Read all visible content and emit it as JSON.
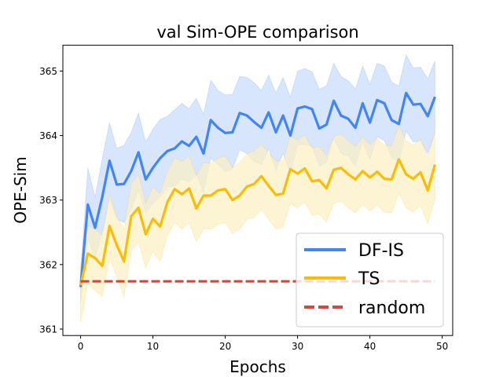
{
  "chart_data": {
    "type": "line",
    "title": "val Sim-OPE comparison",
    "xlabel": "Epochs",
    "ylabel": "OPE-Sim",
    "xlim": [
      -2.45,
      51.45
    ],
    "ylim": [
      360.9,
      365.4
    ],
    "xticks": [
      0,
      10,
      20,
      30,
      40,
      50
    ],
    "yticks": [
      361,
      362,
      363,
      364,
      365
    ],
    "grid": false,
    "legend": {
      "placement": "lower-right"
    },
    "x": [
      0,
      1,
      2,
      3,
      4,
      5,
      6,
      7,
      8,
      9,
      10,
      11,
      12,
      13,
      14,
      15,
      16,
      17,
      18,
      19,
      20,
      21,
      22,
      23,
      24,
      25,
      26,
      27,
      28,
      29,
      30,
      31,
      32,
      33,
      34,
      35,
      36,
      37,
      38,
      39,
      40,
      41,
      42,
      43,
      44,
      45,
      46,
      47,
      48,
      49
    ],
    "series": [
      {
        "name": "DF-IS",
        "color": "#4285f4",
        "band_color": "#c6dafc",
        "style": "solid",
        "values": [
          361.65,
          362.93,
          362.57,
          363.05,
          363.61,
          363.24,
          363.25,
          363.45,
          363.74,
          363.32,
          363.5,
          363.65,
          363.76,
          363.8,
          363.91,
          363.84,
          363.98,
          363.72,
          364.24,
          364.12,
          364.04,
          364.05,
          364.35,
          364.31,
          364.21,
          364.12,
          364.36,
          364.05,
          364.31,
          364.0,
          364.42,
          364.45,
          364.41,
          364.11,
          364.17,
          364.54,
          364.31,
          364.26,
          364.12,
          364.5,
          364.2,
          364.55,
          364.5,
          364.24,
          364.18,
          364.66,
          364.48,
          364.49,
          364.3,
          364.6
        ],
        "upper": [
          361.9,
          363.5,
          363.05,
          363.65,
          364.2,
          363.8,
          363.85,
          364.05,
          364.35,
          363.9,
          364.1,
          364.25,
          364.3,
          364.4,
          364.5,
          364.42,
          364.58,
          364.33,
          364.86,
          364.7,
          364.63,
          364.64,
          364.92,
          364.9,
          364.82,
          364.7,
          364.94,
          364.66,
          364.9,
          364.6,
          365.0,
          365.04,
          364.99,
          364.72,
          364.77,
          365.12,
          364.92,
          364.85,
          364.72,
          365.08,
          364.8,
          365.12,
          365.08,
          364.83,
          364.77,
          365.25,
          365.05,
          365.06,
          364.88,
          365.16
        ],
        "lower": [
          361.4,
          362.4,
          362.1,
          362.5,
          363.0,
          362.7,
          362.65,
          362.85,
          363.15,
          362.8,
          362.95,
          363.05,
          363.2,
          363.22,
          363.32,
          363.28,
          363.4,
          363.12,
          363.65,
          363.55,
          363.44,
          363.48,
          363.78,
          363.72,
          363.6,
          363.55,
          363.79,
          363.46,
          363.72,
          363.42,
          363.85,
          363.86,
          363.83,
          363.52,
          363.58,
          363.96,
          363.72,
          363.68,
          363.52,
          363.9,
          363.62,
          363.98,
          363.92,
          363.66,
          363.59,
          364.07,
          363.9,
          363.91,
          363.72,
          364.03
        ]
      },
      {
        "name": "TS",
        "color": "#fbbc04",
        "band_color": "#fcefc2",
        "style": "solid",
        "values": [
          361.68,
          362.17,
          362.1,
          361.98,
          362.6,
          362.3,
          362.05,
          362.75,
          362.88,
          362.47,
          362.71,
          362.59,
          362.97,
          363.17,
          363.09,
          363.18,
          362.87,
          363.07,
          363.07,
          363.15,
          363.17,
          363.0,
          363.07,
          363.21,
          363.25,
          363.37,
          363.22,
          363.08,
          363.1,
          363.48,
          363.41,
          363.49,
          363.29,
          363.31,
          363.18,
          363.47,
          363.5,
          363.4,
          363.32,
          363.45,
          363.35,
          363.44,
          363.33,
          363.32,
          363.63,
          363.4,
          363.33,
          363.43,
          363.15,
          363.55
        ],
        "upper": [
          362.0,
          362.6,
          362.55,
          362.45,
          363.1,
          362.75,
          362.55,
          363.25,
          363.4,
          362.95,
          363.2,
          363.1,
          363.45,
          363.65,
          363.6,
          363.68,
          363.38,
          363.58,
          363.57,
          363.65,
          363.68,
          363.5,
          363.58,
          363.72,
          363.76,
          363.87,
          363.72,
          363.6,
          363.61,
          364.0,
          363.93,
          364.01,
          363.8,
          363.83,
          363.69,
          363.98,
          364.02,
          363.92,
          363.83,
          363.97,
          363.86,
          363.95,
          363.85,
          363.84,
          364.15,
          363.92,
          363.85,
          363.95,
          363.66,
          364.07
        ],
        "lower": [
          361.1,
          361.7,
          361.6,
          361.5,
          362.1,
          361.8,
          361.5,
          362.2,
          362.35,
          361.95,
          362.2,
          362.05,
          362.45,
          362.65,
          362.55,
          362.65,
          362.35,
          362.55,
          362.55,
          362.62,
          362.65,
          362.48,
          362.55,
          362.7,
          362.73,
          362.85,
          362.7,
          362.55,
          362.58,
          362.95,
          362.88,
          362.97,
          362.76,
          362.78,
          362.66,
          362.95,
          362.98,
          362.88,
          362.8,
          362.93,
          362.83,
          362.92,
          362.81,
          362.8,
          363.1,
          362.88,
          362.81,
          362.91,
          362.63,
          363.02
        ]
      },
      {
        "name": "random",
        "color": "#db4437",
        "style": "dashed",
        "values": [
          361.74,
          361.74,
          361.74,
          361.74,
          361.74,
          361.74,
          361.74,
          361.74,
          361.74,
          361.74,
          361.74,
          361.74,
          361.74,
          361.74,
          361.74,
          361.74,
          361.74,
          361.74,
          361.74,
          361.74,
          361.74,
          361.74,
          361.74,
          361.74,
          361.74,
          361.74,
          361.74,
          361.74,
          361.74,
          361.74,
          361.74,
          361.74,
          361.74,
          361.74,
          361.74,
          361.74,
          361.74,
          361.74,
          361.74,
          361.74,
          361.74,
          361.74,
          361.74,
          361.74,
          361.74,
          361.74,
          361.74,
          361.74,
          361.74,
          361.74
        ]
      }
    ]
  }
}
